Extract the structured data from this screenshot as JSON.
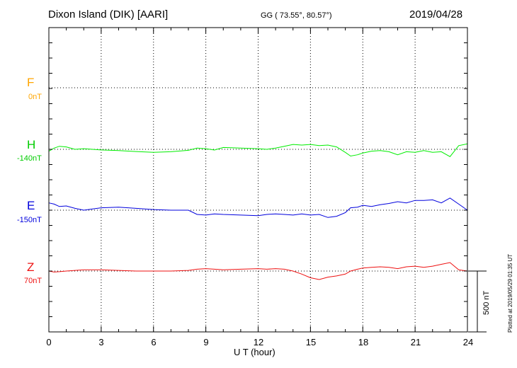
{
  "header": {
    "station": "Dixon Island (DIK)  [AARI]",
    "coords": "GG ( 73.55°,  80.57°)",
    "date": "2019/04/28"
  },
  "footer": {
    "plotted": "Plotted at 2019/05/29 01:35 UT"
  },
  "colors": {
    "F": "#ffa500",
    "H": "#00ee00",
    "E": "#0000dd",
    "Z": "#ee1111"
  },
  "chart_data": {
    "type": "line",
    "xlabel": "U T (hour)",
    "xlim": [
      0,
      24
    ],
    "x_ticks": [
      "0",
      "3",
      "6",
      "9",
      "12",
      "15",
      "18",
      "21",
      "24"
    ],
    "scale_bar": "500 nT",
    "scale_bar_nT": 500,
    "series": [
      {
        "name": "F",
        "offset": "0nT",
        "color": "#ffa500",
        "x": [],
        "values": []
      },
      {
        "name": "H",
        "offset": "-140nT",
        "color": "#00ee00",
        "x": [
          0,
          0.3,
          0.6,
          1.0,
          1.5,
          2,
          3,
          4,
          5,
          6,
          7,
          8,
          8.5,
          9,
          9.5,
          10,
          11,
          12,
          12.5,
          13,
          13.5,
          14,
          14.5,
          15,
          15.5,
          16,
          16.5,
          17,
          17.3,
          17.7,
          18,
          18.5,
          19,
          19.5,
          20,
          20.5,
          21,
          21.5,
          22,
          22.5,
          23,
          23.5,
          24
        ],
        "values": [
          -15,
          10,
          25,
          20,
          0,
          5,
          -5,
          -10,
          -18,
          -25,
          -20,
          -8,
          10,
          5,
          -6,
          15,
          10,
          5,
          0,
          10,
          25,
          40,
          35,
          40,
          30,
          35,
          20,
          -25,
          -55,
          -45,
          -30,
          -15,
          -10,
          -20,
          -45,
          -20,
          -25,
          -10,
          -25,
          -20,
          -60,
          30,
          45
        ]
      },
      {
        "name": "E",
        "offset": "-150nT",
        "color": "#0000dd",
        "x": [
          0,
          0.3,
          0.6,
          1.0,
          1.5,
          2,
          3,
          4,
          5,
          6,
          7,
          8,
          8.5,
          9,
          9.5,
          10,
          11,
          12,
          12.5,
          13,
          13.5,
          14,
          14.5,
          15,
          15.5,
          16,
          16.5,
          17,
          17.3,
          17.7,
          18,
          18.5,
          19,
          19.5,
          20,
          20.5,
          21,
          21.5,
          22,
          22.5,
          23,
          23.5,
          24
        ],
        "values": [
          60,
          50,
          30,
          35,
          15,
          0,
          20,
          25,
          15,
          5,
          0,
          0,
          -35,
          -40,
          -30,
          -35,
          -40,
          -45,
          -35,
          -30,
          -35,
          -40,
          -30,
          -40,
          -35,
          -60,
          -50,
          -20,
          20,
          25,
          40,
          30,
          45,
          55,
          70,
          60,
          80,
          80,
          85,
          60,
          100,
          50,
          0
        ]
      },
      {
        "name": "Z",
        "offset": "70nT",
        "color": "#ee1111",
        "x": [
          0,
          0.3,
          0.6,
          1.0,
          1.5,
          2,
          3,
          4,
          5,
          6,
          7,
          8,
          8.5,
          9,
          9.5,
          10,
          11,
          12,
          12.5,
          13,
          13.5,
          14,
          14.5,
          15,
          15.5,
          16,
          16.5,
          17,
          17.3,
          17.7,
          18,
          18.5,
          19,
          19.5,
          20,
          20.5,
          21,
          21.5,
          22,
          22.5,
          23,
          23.5,
          24
        ],
        "values": [
          0,
          -8,
          -5,
          0,
          5,
          10,
          10,
          5,
          0,
          0,
          0,
          5,
          15,
          20,
          15,
          10,
          15,
          20,
          15,
          20,
          15,
          0,
          -25,
          -55,
          -70,
          -50,
          -40,
          -25,
          0,
          15,
          25,
          30,
          35,
          30,
          20,
          35,
          40,
          30,
          40,
          55,
          70,
          10,
          0
        ]
      }
    ]
  }
}
